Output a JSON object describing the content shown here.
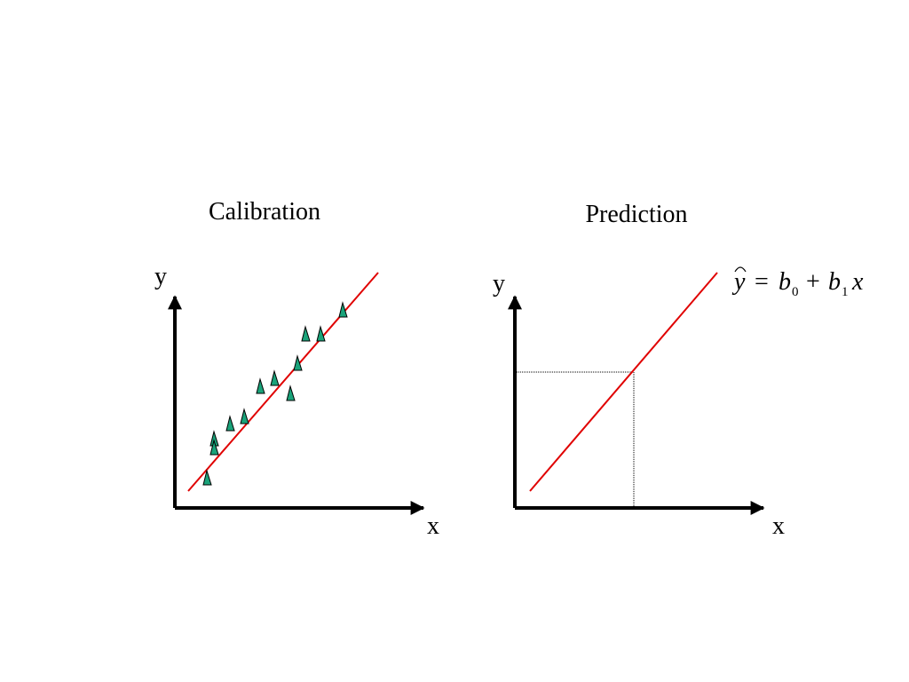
{
  "panels": [
    {
      "title": "Calibration",
      "y_label": "y",
      "x_label": "x"
    },
    {
      "title": "Prediction",
      "y_label": "y",
      "x_label": "x",
      "equation": [
        "y",
        "=",
        "b",
        "0",
        "+",
        "b",
        "1",
        "x"
      ]
    }
  ]
}
